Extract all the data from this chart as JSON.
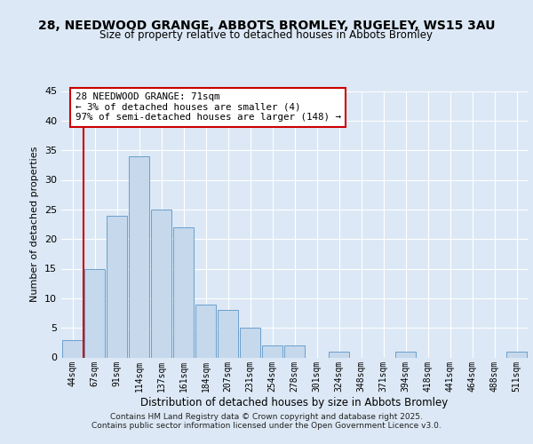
{
  "title": "28, NEEDWOOD GRANGE, ABBOTS BROMLEY, RUGELEY, WS15 3AU",
  "subtitle": "Size of property relative to detached houses in Abbots Bromley",
  "xlabel": "Distribution of detached houses by size in Abbots Bromley",
  "ylabel": "Number of detached properties",
  "bin_labels": [
    "44sqm",
    "67sqm",
    "91sqm",
    "114sqm",
    "137sqm",
    "161sqm",
    "184sqm",
    "207sqm",
    "231sqm",
    "254sqm",
    "278sqm",
    "301sqm",
    "324sqm",
    "348sqm",
    "371sqm",
    "394sqm",
    "418sqm",
    "441sqm",
    "464sqm",
    "488sqm",
    "511sqm"
  ],
  "bar_values": [
    3,
    15,
    24,
    34,
    25,
    22,
    9,
    8,
    5,
    2,
    2,
    0,
    1,
    0,
    0,
    1,
    0,
    0,
    0,
    0,
    1
  ],
  "bar_color": "#c5d8ec",
  "bar_edge_color": "#6aa0cc",
  "ylim": [
    0,
    45
  ],
  "yticks": [
    0,
    5,
    10,
    15,
    20,
    25,
    30,
    35,
    40,
    45
  ],
  "property_line_color": "#cc0000",
  "annotation_title": "28 NEEDWOOD GRANGE: 71sqm",
  "annotation_line1": "← 3% of detached houses are smaller (4)",
  "annotation_line2": "97% of semi-detached houses are larger (148) →",
  "annotation_box_facecolor": "#ffffff",
  "annotation_box_edgecolor": "#cc0000",
  "bg_color": "#dce8f5",
  "plot_bg_color": "#dce8f5",
  "grid_color": "#ffffff",
  "footer1": "Contains HM Land Registry data © Crown copyright and database right 2025.",
  "footer2": "Contains public sector information licensed under the Open Government Licence v3.0."
}
